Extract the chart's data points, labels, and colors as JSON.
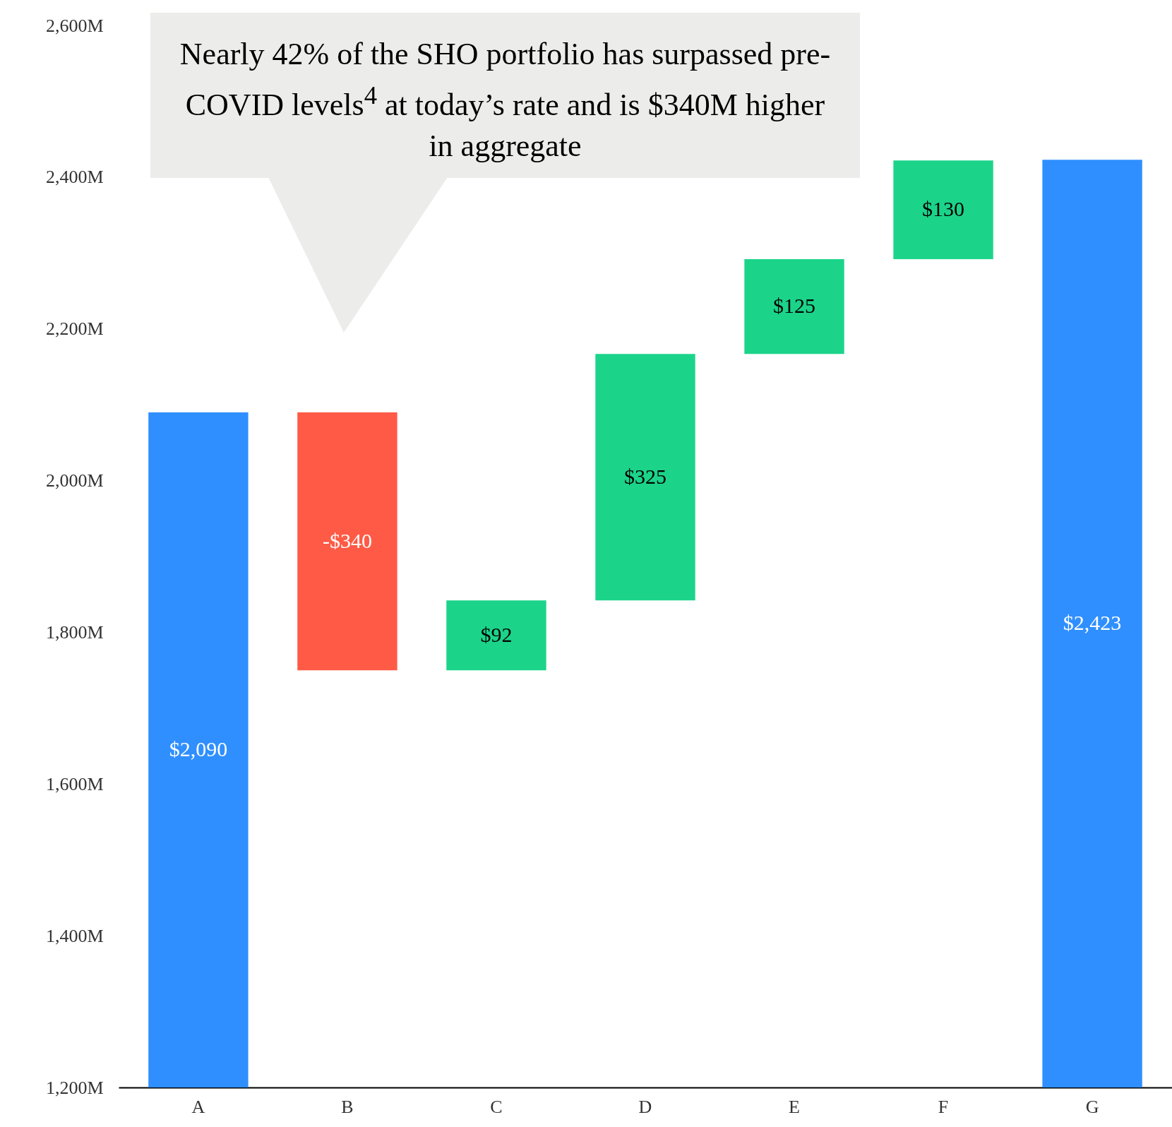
{
  "chart_data": {
    "type": "bar",
    "categories": [
      "A",
      "B",
      "C",
      "D",
      "E",
      "F",
      "G"
    ],
    "values": [
      890,
      -340,
      92,
      325,
      125,
      130,
      1223
    ],
    "base": [
      1200,
      2090,
      1750,
      1842,
      2167,
      2292,
      1200
    ],
    "colors": [
      "#2f8fff",
      "#ff5a45",
      "#1bd48a",
      "#1bd48a",
      "#1bd48a",
      "#1bd48a",
      "#2f8fff"
    ],
    "value_labels": [
      "$2,090",
      "-$340",
      "$92",
      "$325",
      "$125",
      "$130",
      "$2,423"
    ],
    "ylim": [
      1200,
      2600
    ],
    "yticks": [
      {
        "value": 1200,
        "label": "1,200M"
      },
      {
        "value": 1400,
        "label": "1,400M"
      },
      {
        "value": 1600,
        "label": "1,600M"
      },
      {
        "value": 1800,
        "label": "1,800M"
      },
      {
        "value": 2000,
        "label": "2,000M"
      },
      {
        "value": 2200,
        "label": "2,200M"
      },
      {
        "value": 2400,
        "label": "2,400M"
      },
      {
        "value": 2600,
        "label": "2,600M"
      }
    ],
    "grid": false,
    "annotations": [
      "Nearly 42% of the SHO portfolio has surpassed pre-COVID levels$^{4}$ at today’s rate and is $340M higher in aggregate"
    ]
  }
}
